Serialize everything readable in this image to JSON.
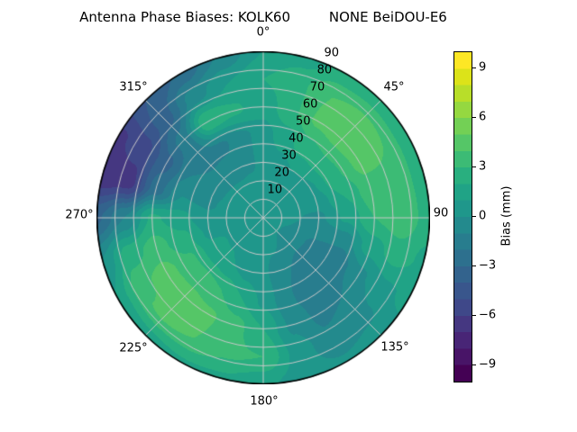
{
  "title": "Antenna Phase Biases: KOLK60         NONE BeiDOU-E6",
  "chart_data": {
    "type": "heatmap",
    "projection": "polar",
    "title": "Antenna Phase Biases: KOLK60         NONE BeiDOU-E6",
    "station": "KOLK60",
    "signal": "NONE BeiDOU-E6",
    "angular_ticks": [
      "0°",
      "45°",
      "90",
      "135°",
      "180°",
      "225°",
      "270°",
      "315°"
    ],
    "angular_tick_degrees": [
      0,
      45,
      90,
      135,
      180,
      225,
      270,
      315
    ],
    "radial_ticks": [
      "10",
      "20",
      "30",
      "40",
      "50",
      "60",
      "70",
      "80",
      "90"
    ],
    "radial_tick_values": [
      10,
      20,
      30,
      40,
      50,
      60,
      70,
      80,
      90
    ],
    "radial_range": [
      0,
      90
    ],
    "radial_label_angle_deg": 22.5,
    "grid_on": true,
    "colorbar": {
      "label": "Bias (mm)",
      "tick_labels": [
        "9",
        "6",
        "3",
        "0",
        "−3",
        "−6",
        "−9"
      ],
      "tick_values": [
        9,
        6,
        3,
        0,
        -3,
        -6,
        -9
      ],
      "range": [
        -10,
        10
      ],
      "level_step": 1,
      "colormap": "viridis",
      "band_colors": [
        "#440154",
        "#481467",
        "#482576",
        "#453781",
        "#3f4889",
        "#39568c",
        "#33638d",
        "#2d708e",
        "#287d8e",
        "#238a8d",
        "#1f978b",
        "#20a386",
        "#29af7f",
        "#3cbb75",
        "#55c667",
        "#73d055",
        "#95d840",
        "#b8de29",
        "#dce319",
        "#fde725"
      ]
    },
    "grid": {
      "azimuth_step_deg": 15,
      "azimuths_deg": [
        0,
        15,
        30,
        45,
        60,
        75,
        90,
        105,
        120,
        135,
        150,
        165,
        180,
        195,
        210,
        225,
        240,
        255,
        270,
        285,
        300,
        315,
        330,
        345
      ],
      "radii": [
        0,
        15,
        30,
        45,
        60,
        75,
        90
      ],
      "values_mm": [
        [
          0.5,
          0.5,
          0.5,
          0.5,
          0.5,
          0.5,
          0.5,
          0.5,
          0.5,
          0.5,
          0.5,
          0.5,
          0.5,
          0.5,
          0.5,
          0.5,
          0.5,
          0.5,
          0.5,
          0.5,
          0.5,
          0.5,
          0.5,
          0.5
        ],
        [
          0.4,
          0.4,
          0.5,
          0.5,
          0.4,
          0.2,
          0.1,
          0.0,
          -0.1,
          -0.1,
          0.0,
          0.2,
          0.3,
          0.4,
          0.6,
          0.7,
          0.8,
          0.8,
          0.8,
          0.9,
          1.0,
          1.0,
          0.8,
          0.6
        ],
        [
          0.3,
          0.6,
          1.0,
          1.0,
          0.8,
          0.3,
          -0.2,
          -0.8,
          -1.2,
          -1.3,
          -1.0,
          -0.4,
          0.2,
          0.6,
          1.0,
          1.2,
          1.2,
          0.8,
          0.3,
          -0.2,
          -0.6,
          -0.7,
          -0.6,
          -0.2
        ],
        [
          0.6,
          1.5,
          2.6,
          2.9,
          2.8,
          2.0,
          1.2,
          -0.5,
          -1.8,
          -1.9,
          -1.6,
          -0.6,
          0.8,
          2.0,
          3.0,
          3.3,
          3.2,
          2.4,
          1.4,
          0.0,
          -1.0,
          -1.3,
          -1.2,
          -0.4
        ],
        [
          1.3,
          2.8,
          4.2,
          4.5,
          4.3,
          3.6,
          3.0,
          1.5,
          -0.2,
          -1.0,
          -1.2,
          -0.2,
          2.0,
          3.4,
          4.2,
          4.5,
          4.4,
          3.4,
          2.2,
          -2.5,
          -3.3,
          -1.5,
          3.0,
          2.2
        ],
        [
          2.0,
          2.8,
          4.0,
          4.2,
          4.0,
          3.8,
          3.8,
          2.5,
          0.8,
          -0.3,
          -0.8,
          0.5,
          3.0,
          3.2,
          4.0,
          4.2,
          3.8,
          2.5,
          -1.0,
          -6.5,
          -5.5,
          -3.5,
          -0.5,
          1.0
        ],
        [
          1.0,
          1.5,
          2.2,
          2.3,
          2.2,
          2.3,
          2.5,
          1.8,
          1.2,
          0.5,
          0.2,
          0.5,
          1.2,
          1.8,
          1.8,
          1.5,
          1.2,
          0.0,
          -3.2,
          -6.8,
          -6.2,
          -4.0,
          -2.8,
          -0.8
        ]
      ]
    }
  },
  "plot_style": {
    "grid_line_color": "#c9c9c9",
    "outer_ring_color": "#000000",
    "background": "#ffffff"
  }
}
